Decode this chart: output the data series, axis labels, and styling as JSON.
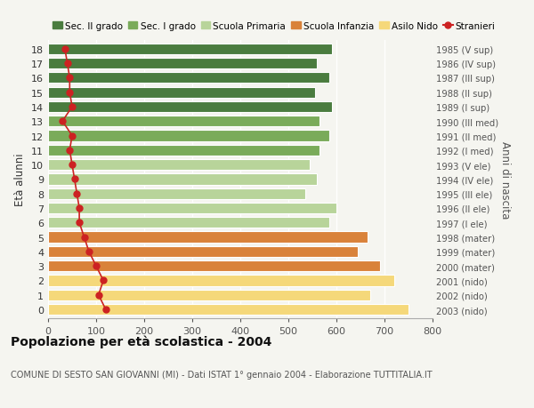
{
  "ages": [
    18,
    17,
    16,
    15,
    14,
    13,
    12,
    11,
    10,
    9,
    8,
    7,
    6,
    5,
    4,
    3,
    2,
    1,
    0
  ],
  "bar_values": [
    590,
    560,
    585,
    555,
    590,
    565,
    585,
    565,
    545,
    560,
    535,
    600,
    585,
    665,
    645,
    690,
    720,
    670,
    750
  ],
  "right_labels": [
    "1985 (V sup)",
    "1986 (IV sup)",
    "1987 (III sup)",
    "1988 (II sup)",
    "1989 (I sup)",
    "1990 (III med)",
    "1991 (II med)",
    "1992 (I med)",
    "1993 (V ele)",
    "1994 (IV ele)",
    "1995 (III ele)",
    "1996 (II ele)",
    "1997 (I ele)",
    "1998 (mater)",
    "1999 (mater)",
    "2000 (mater)",
    "2001 (nido)",
    "2002 (nido)",
    "2003 (nido)"
  ],
  "bar_colors": [
    "#4a7c3f",
    "#4a7c3f",
    "#4a7c3f",
    "#4a7c3f",
    "#4a7c3f",
    "#7aab5a",
    "#7aab5a",
    "#7aab5a",
    "#b8d49a",
    "#b8d49a",
    "#b8d49a",
    "#b8d49a",
    "#b8d49a",
    "#d9823a",
    "#d9823a",
    "#d9823a",
    "#f5d87a",
    "#f5d87a",
    "#f5d87a"
  ],
  "stranieri_values": [
    35,
    40,
    45,
    45,
    50,
    30,
    50,
    45,
    50,
    55,
    60,
    65,
    65,
    75,
    85,
    100,
    115,
    105,
    120
  ],
  "stranieri_color": "#cc2222",
  "title": "Popolazione per età scolastica - 2004",
  "subtitle": "COMUNE DI SESTO SAN GIOVANNI (MI) - Dati ISTAT 1° gennaio 2004 - Elaborazione TUTTITALIA.IT",
  "ylabel": "Età alunni",
  "right_ylabel": "Anni di nascita",
  "xlim": [
    0,
    800
  ],
  "xticks": [
    0,
    100,
    200,
    300,
    400,
    500,
    600,
    700,
    800
  ],
  "legend_labels": [
    "Sec. II grado",
    "Sec. I grado",
    "Scuola Primaria",
    "Scuola Infanzia",
    "Asilo Nido",
    "Stranieri"
  ],
  "legend_colors": [
    "#4a7c3f",
    "#7aab5a",
    "#b8d49a",
    "#d9823a",
    "#f5d87a",
    "#cc2222"
  ],
  "bg_color": "#f5f5f0",
  "bar_height": 0.75
}
